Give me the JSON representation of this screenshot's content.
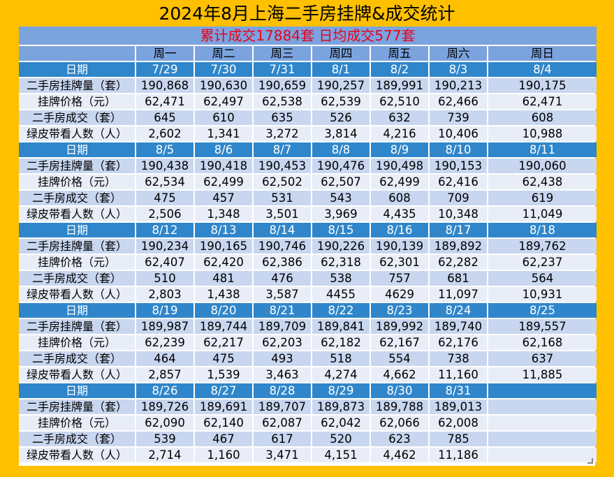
{
  "title": "2024年8月上海二手房挂牌&成交统计",
  "summary": "累计成交17884套    日均成交577套",
  "weekdays": [
    "周一",
    "周二",
    "周三",
    "周四",
    "周五",
    "周六",
    "周日"
  ],
  "row_labels": {
    "date": "日期",
    "listings": "二手房挂牌量（套）",
    "price": "挂牌价格（元）",
    "deals": "二手房成交（套）",
    "viewers": "绿皮带看人数（人）"
  },
  "weeks": [
    {
      "dates": [
        "7/29",
        "7/30",
        "7/31",
        "8/1",
        "8/2",
        "8/3",
        "8/4"
      ],
      "listings": [
        "190,868",
        "190,630",
        "190,659",
        "190,257",
        "189,991",
        "190,213",
        "190,175"
      ],
      "price": [
        "62,471",
        "62,497",
        "62,538",
        "62,539",
        "62,510",
        "62,466",
        "62,471"
      ],
      "deals": [
        "645",
        "610",
        "635",
        "526",
        "632",
        "739",
        "608"
      ],
      "viewers": [
        "2,602",
        "1,341",
        "3,272",
        "3,814",
        "4,216",
        "10,406",
        "10,988"
      ]
    },
    {
      "dates": [
        "8/5",
        "8/6",
        "8/7",
        "8/8",
        "8/9",
        "8/10",
        "8/11"
      ],
      "listings": [
        "190,438",
        "190,418",
        "190,453",
        "190,476",
        "190,498",
        "190,153",
        "190,060"
      ],
      "price": [
        "62,534",
        "62,499",
        "62,502",
        "62,507",
        "62,499",
        "62,416",
        "62,438"
      ],
      "deals": [
        "475",
        "457",
        "531",
        "543",
        "608",
        "709",
        "619"
      ],
      "viewers": [
        "2,506",
        "1,348",
        "3,501",
        "3,969",
        "4,435",
        "10,348",
        "11,049"
      ]
    },
    {
      "dates": [
        "8/12",
        "8/13",
        "8/14",
        "8/15",
        "8/16",
        "8/17",
        "8/18"
      ],
      "listings": [
        "190,234",
        "190,165",
        "190,746",
        "190,226",
        "190,139",
        "189,892",
        "189,762"
      ],
      "price": [
        "62,407",
        "62,420",
        "62,386",
        "62,318",
        "62,301",
        "62,282",
        "62,237"
      ],
      "deals": [
        "510",
        "481",
        "476",
        "538",
        "757",
        "681",
        "564"
      ],
      "viewers": [
        "2,803",
        "1,438",
        "3,587",
        "4455",
        "4629",
        "11,097",
        "10,931"
      ]
    },
    {
      "dates": [
        "8/19",
        "8/20",
        "8/21",
        "8/22",
        "8/23",
        "8/24",
        "8/25"
      ],
      "listings": [
        "189,987",
        "189,744",
        "189,709",
        "189,841",
        "189,992",
        "189,740",
        "189,557"
      ],
      "price": [
        "62,239",
        "62,217",
        "62,203",
        "62,182",
        "62,167",
        "62,176",
        "62,168"
      ],
      "deals": [
        "464",
        "475",
        "493",
        "518",
        "554",
        "738",
        "637"
      ],
      "viewers": [
        "2,857",
        "1,539",
        "3,463",
        "4,274",
        "4,662",
        "11,160",
        "11,885"
      ]
    },
    {
      "dates": [
        "8/26",
        "8/27",
        "8/28",
        "8/29",
        "8/30",
        "8/31",
        ""
      ],
      "listings": [
        "189,726",
        "189,691",
        "189,707",
        "189,873",
        "189,788",
        "189,013",
        ""
      ],
      "price": [
        "62,090",
        "62,140",
        "62,087",
        "62,042",
        "62,066",
        "62,008",
        ""
      ],
      "deals": [
        "539",
        "467",
        "617",
        "520",
        "623",
        "785",
        ""
      ],
      "viewers": [
        "2,714",
        "1,160",
        "3,471",
        "4,151",
        "4,462",
        "11,186",
        ""
      ]
    }
  ]
}
